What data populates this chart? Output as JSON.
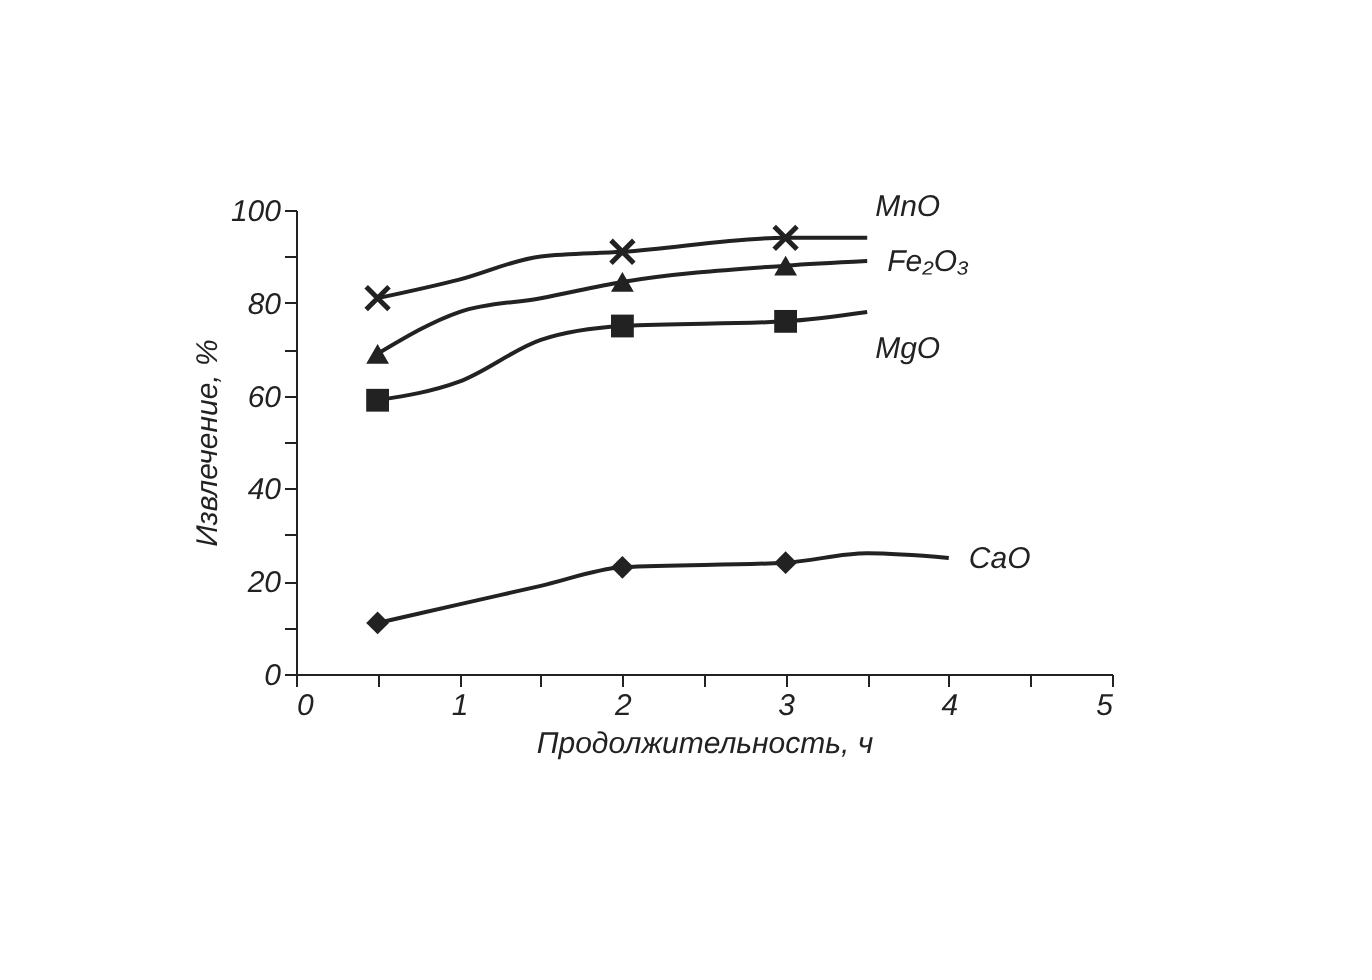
{
  "chart_data": {
    "type": "line",
    "xlabel": "Продолжительность, ч",
    "ylabel": "Извлечение, %",
    "xlim": [
      0,
      5
    ],
    "ylim": [
      0,
      100
    ],
    "xticks": [
      0,
      {
        "value": 0.5,
        "label": null
      },
      1,
      {
        "value": 1.5,
        "label": null
      },
      2,
      {
        "value": 2.5,
        "label": null
      },
      3,
      {
        "value": 3.5,
        "label": null
      },
      4,
      {
        "value": 4.5,
        "label": null
      },
      5
    ],
    "yticks": [
      0,
      {
        "value": 10,
        "label": null
      },
      20,
      {
        "value": 30,
        "label": null
      },
      40,
      {
        "value": 50,
        "label": null
      },
      60,
      {
        "value": 70,
        "label": null
      },
      80,
      {
        "value": 90,
        "label": null
      },
      100
    ],
    "grid": false,
    "legend": false,
    "line_style": "solid",
    "series": [
      {
        "name": "MnO",
        "marker": "none",
        "color": "#222222",
        "x": [
          0.5,
          1,
          1.5,
          2,
          3,
          3.5
        ],
        "values": [
          81,
          85,
          90,
          91,
          94,
          94
        ]
      },
      {
        "name": "Fe₂O₃",
        "marker": "none",
        "color": "#222222",
        "x": [
          0.5,
          1,
          1.5,
          2,
          3,
          3.5
        ],
        "values": [
          69,
          78,
          81,
          84.5,
          88,
          89
        ]
      },
      {
        "name": "MgO",
        "marker": "none",
        "color": "#222222",
        "x": [
          0.5,
          1,
          1.5,
          2,
          3,
          3.5
        ],
        "values": [
          59,
          63,
          72,
          75,
          76,
          78
        ]
      },
      {
        "name": "CaO",
        "marker": "none",
        "color": "#222222",
        "x": [
          0.5,
          1,
          1.5,
          2,
          3,
          3.5,
          4
        ],
        "values": [
          11,
          15,
          19,
          23,
          24,
          26,
          25
        ]
      },
      {
        "type": "scatter",
        "marker": "cross",
        "color": "#222222",
        "x": [
          0.5,
          2,
          3
        ],
        "values": [
          81,
          91,
          94
        ]
      },
      {
        "type": "scatter",
        "marker": "triangle",
        "color": "#222222",
        "x": [
          0.5,
          2,
          3
        ],
        "values": [
          69,
          84.5,
          88
        ]
      },
      {
        "type": "scatter",
        "marker": "square",
        "color": "#222222",
        "x": [
          0.5,
          2,
          3
        ],
        "values": [
          59,
          75,
          76
        ]
      },
      {
        "type": "scatter",
        "marker": "diamond",
        "color": "#222222",
        "x": [
          0.5,
          2,
          3
        ],
        "values": [
          11,
          23,
          24
        ]
      }
    ]
  }
}
